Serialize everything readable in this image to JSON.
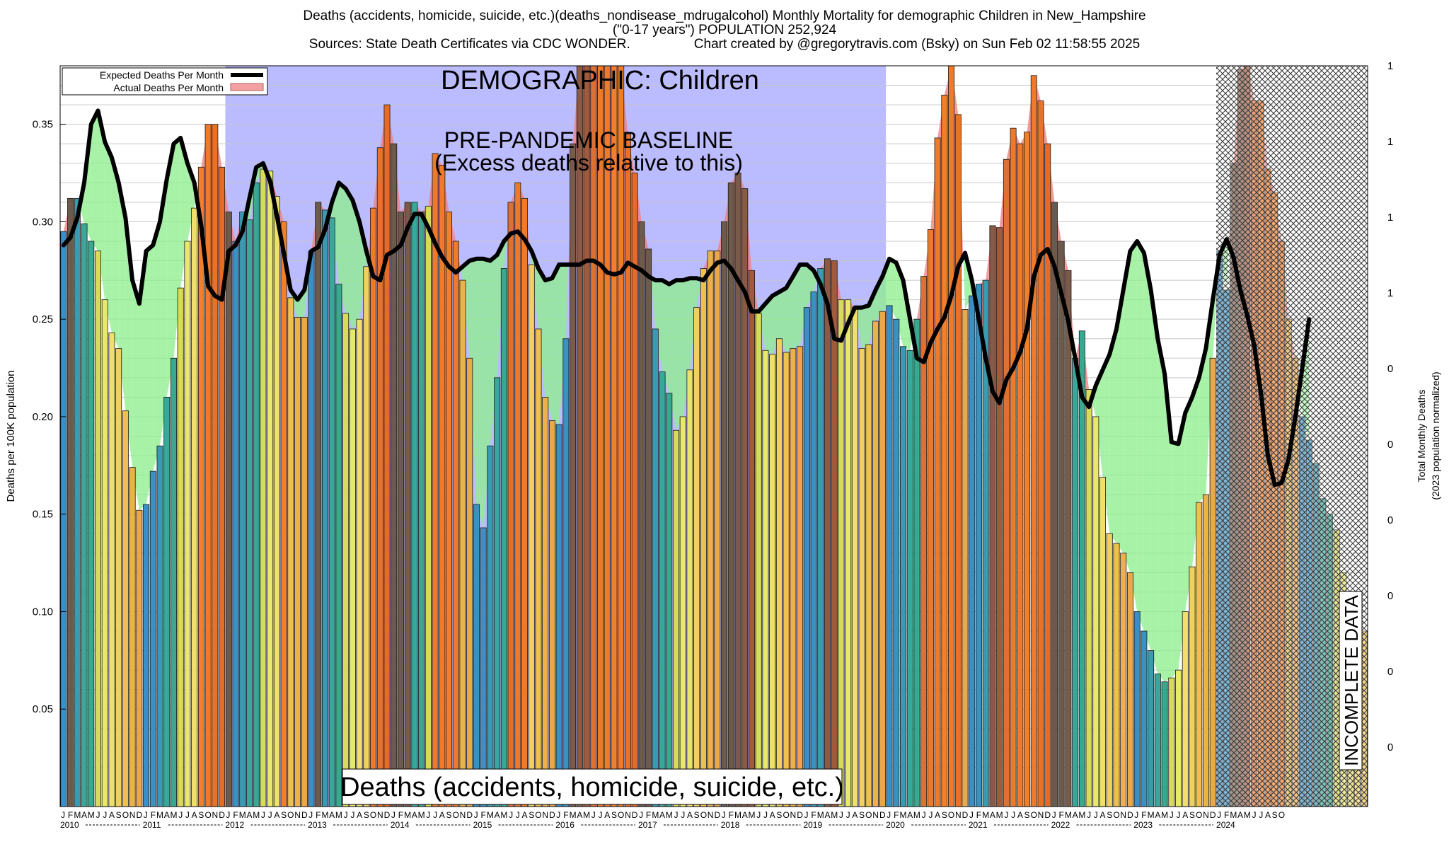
{
  "header": {
    "line1": "Deaths (accidents, homicide, suicide, etc.)(deaths_nondisease_mdrugalcohol) Monthly Mortality for demographic Children in New_Hampshire",
    "line2": "(\"0-17 years\") POPULATION 252,924",
    "line3_left": "Sources: State Death Certificates via CDC WONDER.",
    "line3_right": "Chart created by @gregorytravis.com (Bsky) on Sun Feb 02 11:58:55 2025"
  },
  "chart_data": {
    "type": "bar",
    "ylabel": "Deaths per 100K population",
    "y2label_line1": "Total Monthly Deaths",
    "y2label_line2": "(2023 population normalized)",
    "ylim": [
      0.0,
      0.38
    ],
    "yticks": [
      0.05,
      0.1,
      0.15,
      0.2,
      0.25,
      0.3,
      0.35
    ],
    "y2ticks": [
      "1",
      "1",
      "1",
      "1",
      "0",
      "0",
      "0",
      "0",
      "0",
      "0"
    ],
    "month_letters": [
      "J",
      "F",
      "M",
      "A",
      "M",
      "J",
      "J",
      "A",
      "S",
      "O",
      "N",
      "D"
    ],
    "years": [
      "2010",
      "2011",
      "2012",
      "2013",
      "2014",
      "2015",
      "2016",
      "2017",
      "2018",
      "2019",
      "2020",
      "2021",
      "2022",
      "2023",
      "2024"
    ],
    "last_year_months": 10,
    "demographic_label": "DEMOGRAPHIC: Children",
    "baseline_label_line1": "PRE-PANDEMIC BASELINE",
    "baseline_label_line2": "(Excess deaths relative to this)",
    "bottom_label": "Deaths (accidents, homicide, suicide, etc.)",
    "incomplete_label": "INCOMPLETE DATA",
    "legend": [
      {
        "label": "Expected Deaths Per Month",
        "color": "#000000"
      },
      {
        "label": "Actual Deaths Per Month",
        "color": "#f4a0a0"
      }
    ],
    "colors": {
      "baseline_band": "#bbbbff",
      "excess_fill": "#f08080",
      "deficit_fill": "#90ee90",
      "expected_line": "#000000"
    },
    "series": [
      {
        "name": "Actual Deaths Per Month",
        "values": [
          0.295,
          0.312,
          0.312,
          0.299,
          0.29,
          0.285,
          0.26,
          0.243,
          0.235,
          0.203,
          0.174,
          0.152,
          0.155,
          0.172,
          0.185,
          0.21,
          0.23,
          0.266,
          0.29,
          0.307,
          0.328,
          0.35,
          0.35,
          0.328,
          0.305,
          0.29,
          0.305,
          0.301,
          0.32,
          0.327,
          0.326,
          0.313,
          0.3,
          0.261,
          0.251,
          0.251,
          0.285,
          0.31,
          0.306,
          0.302,
          0.268,
          0.253,
          0.245,
          0.25,
          0.277,
          0.307,
          0.338,
          0.36,
          0.34,
          0.305,
          0.31,
          0.31,
          0.305,
          0.308,
          0.335,
          0.329,
          0.305,
          0.29,
          0.27,
          0.23,
          0.155,
          0.143,
          0.185,
          0.22,
          0.276,
          0.31,
          0.32,
          0.312,
          0.278,
          0.245,
          0.21,
          0.198,
          0.196,
          0.24,
          0.34,
          0.383,
          0.383,
          0.383,
          0.383,
          0.383,
          0.383,
          0.38,
          0.345,
          0.325,
          0.3,
          0.286,
          0.245,
          0.223,
          0.212,
          0.193,
          0.2,
          0.224,
          0.256,
          0.276,
          0.285,
          0.285,
          0.3,
          0.32,
          0.325,
          0.317,
          0.275,
          0.253,
          0.234,
          0.232,
          0.24,
          0.233,
          0.235,
          0.236,
          0.256,
          0.264,
          0.276,
          0.281,
          0.28,
          0.26,
          0.26,
          0.256,
          0.235,
          0.237,
          0.249,
          0.254,
          0.257,
          0.25,
          0.236,
          0.234,
          0.25,
          0.272,
          0.296,
          0.343,
          0.365,
          0.38,
          0.355,
          0.255,
          0.262,
          0.268,
          0.27,
          0.298,
          0.297,
          0.332,
          0.348,
          0.34,
          0.346,
          0.375,
          0.362,
          0.34,
          0.31,
          0.29,
          0.275,
          0.23,
          0.244,
          0.214,
          0.2,
          0.169,
          0.14,
          0.135,
          0.13,
          0.12,
          0.1,
          0.09,
          0.08,
          0.068,
          0.064,
          0.066,
          0.07,
          0.1,
          0.123,
          0.156,
          0.16,
          0.23,
          0.285,
          0.265,
          0.33,
          0.378,
          0.385,
          0.362,
          0.362,
          0.327,
          0.315,
          0.29,
          0.25,
          0.23,
          0.2,
          0.188,
          0.176,
          0.158,
          0.15,
          0.142,
          0.12,
          0.1,
          0.08,
          0.09
        ]
      },
      {
        "name": "Expected Deaths Per Month",
        "values": [
          0.288,
          0.292,
          0.302,
          0.32,
          0.35,
          0.357,
          0.341,
          0.333,
          0.32,
          0.302,
          0.27,
          0.258,
          0.285,
          0.288,
          0.3,
          0.322,
          0.34,
          0.343,
          0.33,
          0.32,
          0.298,
          0.267,
          0.262,
          0.26,
          0.285,
          0.288,
          0.295,
          0.312,
          0.328,
          0.33,
          0.321,
          0.303,
          0.284,
          0.265,
          0.26,
          0.265,
          0.285,
          0.287,
          0.296,
          0.31,
          0.32,
          0.317,
          0.311,
          0.3,
          0.285,
          0.272,
          0.27,
          0.283,
          0.285,
          0.288,
          0.297,
          0.304,
          0.304,
          0.297,
          0.289,
          0.282,
          0.277,
          0.274,
          0.277,
          0.28,
          0.281,
          0.281,
          0.28,
          0.283,
          0.29,
          0.294,
          0.295,
          0.291,
          0.285,
          0.276,
          0.27,
          0.271,
          0.278,
          0.278,
          0.278,
          0.278,
          0.28,
          0.28,
          0.278,
          0.274,
          0.273,
          0.274,
          0.279,
          0.277,
          0.275,
          0.272,
          0.27,
          0.27,
          0.268,
          0.27,
          0.27,
          0.271,
          0.271,
          0.27,
          0.275,
          0.279,
          0.28,
          0.276,
          0.27,
          0.264,
          0.254,
          0.254,
          0.258,
          0.262,
          0.264,
          0.266,
          0.272,
          0.278,
          0.278,
          0.275,
          0.268,
          0.258,
          0.24,
          0.239,
          0.248,
          0.256,
          0.256,
          0.257,
          0.265,
          0.272,
          0.281,
          0.279,
          0.27,
          0.25,
          0.23,
          0.228,
          0.238,
          0.245,
          0.251,
          0.262,
          0.277,
          0.284,
          0.27,
          0.25,
          0.23,
          0.213,
          0.207,
          0.219,
          0.225,
          0.233,
          0.245,
          0.272,
          0.283,
          0.286,
          0.277,
          0.263,
          0.249,
          0.23,
          0.21,
          0.205,
          0.216,
          0.224,
          0.232,
          0.245,
          0.265,
          0.285,
          0.29,
          0.284,
          0.265,
          0.24,
          0.222,
          0.187,
          0.186,
          0.202,
          0.21,
          0.22,
          0.235,
          0.26,
          0.283,
          0.291,
          0.282,
          0.265,
          0.252,
          0.237,
          0.212,
          0.18,
          0.165,
          0.166,
          0.178,
          0.2,
          0.225,
          0.25
        ]
      }
    ]
  }
}
